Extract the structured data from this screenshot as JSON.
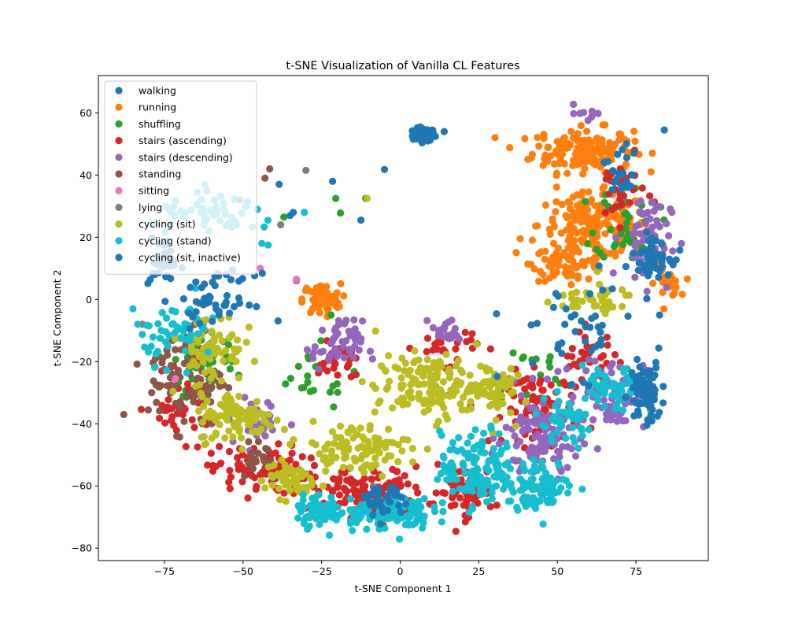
{
  "chart_data": {
    "type": "scatter",
    "title": "t-SNE Visualization of Vanilla CL Features",
    "xlabel": "t-SNE Component 1",
    "ylabel": "t-SNE Component 2",
    "xlim": [
      -96,
      98
    ],
    "ylim": [
      -84,
      72
    ],
    "xticks": [
      -75,
      -50,
      -25,
      0,
      25,
      50,
      75
    ],
    "xtick_labels": [
      "−75",
      "−50",
      "−25",
      "0",
      "25",
      "50",
      "75"
    ],
    "yticks": [
      -80,
      -60,
      -40,
      -20,
      0,
      20,
      40,
      60
    ],
    "ytick_labels": [
      "−80",
      "−60",
      "−40",
      "−20",
      "0",
      "20",
      "40",
      "60"
    ],
    "grid": false,
    "legend_position": "top-left",
    "series": [
      {
        "name": "walking",
        "color": "#1f77b4",
        "clusters": [
          [
            7.5,
            53,
            3.5,
            2,
            110
          ]
        ],
        "points": [
          [
            -5,
            41.8
          ],
          [
            -21.5,
            38
          ],
          [
            14,
            54
          ]
        ]
      },
      {
        "name": "running",
        "color": "#ff7f0e",
        "clusters": [
          [
            58,
            48,
            16,
            7,
            160
          ],
          [
            62,
            24,
            18,
            10,
            180
          ],
          [
            54,
            12,
            12,
            6,
            70
          ],
          [
            85,
            5,
            4,
            4,
            25
          ],
          [
            -25,
            0,
            6,
            5,
            70
          ]
        ],
        "points": []
      },
      {
        "name": "shuffling",
        "color": "#2ca02c",
        "clusters": [
          [
            -62,
            -20,
            10,
            14,
            70
          ],
          [
            72,
            25,
            10,
            12,
            40
          ],
          [
            40,
            -25,
            15,
            12,
            20
          ],
          [
            -30,
            -25,
            15,
            10,
            20
          ]
        ],
        "points": [
          [
            -20.5,
            32.5
          ],
          [
            -19,
            27.8
          ],
          [
            -11,
            32.5
          ],
          [
            -37,
            26.5
          ],
          [
            -22,
            -5
          ]
        ]
      },
      {
        "name": "stairs (ascending)",
        "color": "#d62728",
        "clusters": [
          [
            -45,
            -55,
            15,
            8,
            90
          ],
          [
            -10,
            -62,
            18,
            8,
            110
          ],
          [
            20,
            -62,
            10,
            8,
            60
          ],
          [
            45,
            -35,
            12,
            12,
            80
          ],
          [
            60,
            -20,
            10,
            10,
            40
          ],
          [
            15,
            -15,
            10,
            6,
            30
          ],
          [
            -20,
            -20,
            6,
            6,
            30
          ],
          [
            70,
            35,
            8,
            10,
            30
          ],
          [
            -70,
            -35,
            10,
            10,
            40
          ]
        ],
        "points": []
      },
      {
        "name": "stairs (descending)",
        "color": "#9467bd",
        "clusters": [
          [
            45,
            -45,
            12,
            15,
            120
          ],
          [
            68,
            -30,
            10,
            12,
            60
          ],
          [
            78,
            20,
            8,
            15,
            60
          ],
          [
            -20,
            -15,
            8,
            8,
            50
          ],
          [
            15,
            -10,
            5,
            4,
            20
          ],
          [
            -45,
            -40,
            10,
            8,
            30
          ],
          [
            60,
            60,
            4,
            3,
            10
          ]
        ],
        "points": [
          [
            -33,
            6
          ]
        ]
      },
      {
        "name": "standing",
        "color": "#8c564b",
        "clusters": [
          [
            -68,
            -25,
            12,
            16,
            90
          ],
          [
            -45,
            -50,
            8,
            8,
            20
          ]
        ],
        "points": [
          [
            -41.5,
            42
          ],
          [
            -43,
            39
          ],
          [
            -51,
            32
          ]
        ]
      },
      {
        "name": "sitting",
        "color": "#e377c2",
        "clusters": [],
        "points": [
          [
            -33,
            6.5
          ],
          [
            -71.5,
            -25.5
          ],
          [
            -44.5,
            10
          ]
        ]
      },
      {
        "name": "lying",
        "color": "#7f7f7f",
        "clusters": [],
        "points": [
          [
            -30,
            41.5
          ],
          [
            -38,
            24
          ],
          [
            -82,
            -8
          ],
          [
            -78,
            8
          ]
        ]
      },
      {
        "name": "cycling (sit)",
        "color": "#bcbd22",
        "clusters": [
          [
            -52,
            -38,
            12,
            8,
            100
          ],
          [
            -60,
            -15,
            10,
            12,
            70
          ],
          [
            -15,
            -48,
            18,
            8,
            100
          ],
          [
            10,
            -28,
            18,
            10,
            150
          ],
          [
            30,
            -28,
            6,
            10,
            50
          ],
          [
            -35,
            -58,
            8,
            6,
            50
          ],
          [
            60,
            0,
            15,
            5,
            40
          ]
        ],
        "points": [
          [
            -10.5,
            32.5
          ]
        ]
      },
      {
        "name": "cycling (stand)",
        "color": "#17becf",
        "clusters": [
          [
            25,
            -55,
            12,
            12,
            140
          ],
          [
            45,
            -60,
            10,
            8,
            80
          ],
          [
            -5,
            -68,
            15,
            6,
            120
          ],
          [
            -25,
            -68,
            8,
            5,
            60
          ],
          [
            68,
            -30,
            10,
            8,
            60
          ],
          [
            -70,
            -10,
            12,
            10,
            50
          ],
          [
            -58,
            27,
            20,
            6,
            60
          ],
          [
            52,
            -40,
            10,
            8,
            40
          ]
        ],
        "points": [
          [
            -30.5,
            28
          ],
          [
            -44,
            18
          ],
          [
            -42,
            17.5
          ],
          [
            -85,
            -3
          ],
          [
            -83.5,
            -8
          ],
          [
            -76,
            -10
          ]
        ]
      },
      {
        "name": "cycling (sit, inactive)",
        "color": "#1f77b4",
        "clusters": [
          [
            78,
            -30,
            5,
            10,
            80
          ],
          [
            80,
            14,
            6,
            6,
            60
          ],
          [
            -58,
            0,
            12,
            8,
            50
          ],
          [
            -75,
            12,
            5,
            8,
            30
          ],
          [
            55,
            -10,
            20,
            15,
            40
          ],
          [
            -5,
            -65,
            10,
            6,
            30
          ],
          [
            70,
            40,
            5,
            10,
            20
          ]
        ],
        "points": [
          [
            -12.5,
            25.5
          ],
          [
            -38.5,
            37
          ],
          [
            -35,
            27
          ],
          [
            -34,
            28
          ],
          [
            84,
            54.5
          ],
          [
            82.5,
            -5
          ]
        ]
      }
    ]
  }
}
